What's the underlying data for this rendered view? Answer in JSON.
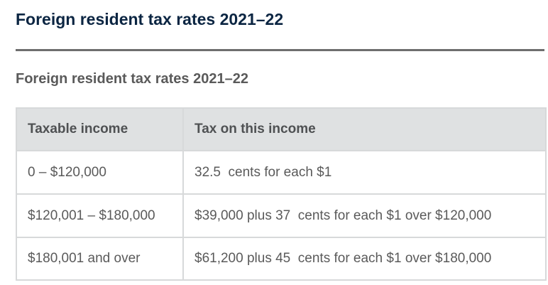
{
  "page": {
    "heading": "Foreign resident tax rates 2021–22"
  },
  "table": {
    "caption": "Foreign resident tax rates 2021–22",
    "headers": [
      "Taxable income",
      "Tax on this income"
    ],
    "rows": [
      [
        "0 – $120,000",
        "32.5  cents for each $1"
      ],
      [
        "$120,001 – $180,000",
        "$39,000 plus 37  cents for each $1 over $120,000"
      ],
      [
        "$180,001 and over",
        "$61,200 plus 45  cents for each $1 over $180,000"
      ]
    ]
  },
  "colors": {
    "heading": "#0b2542",
    "rule": "#6e6e6e",
    "header_background": "#dfe1e2",
    "border": "#d7d9da",
    "body_text": "#5a5a5a"
  }
}
